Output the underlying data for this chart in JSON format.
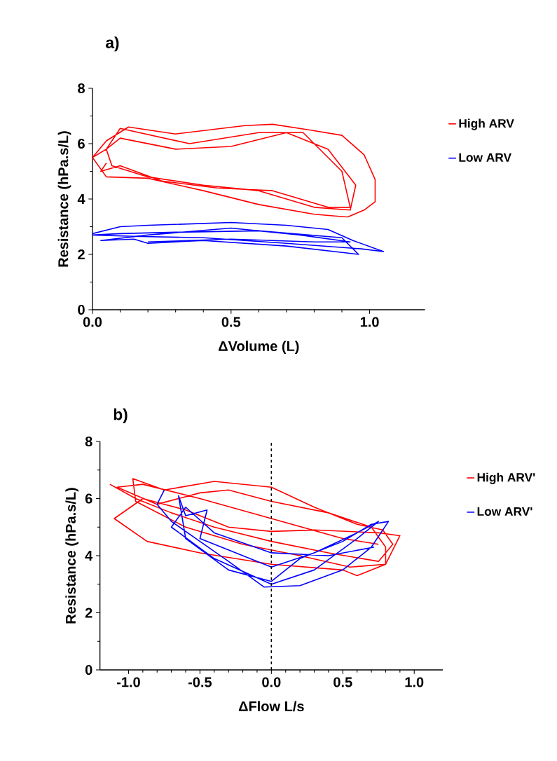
{
  "chart_data": [
    {
      "type": "line",
      "title": "a)",
      "xlabel": "ΔVolume (L)",
      "ylabel": "Resistance (hPa.s/L)",
      "xlim": [
        0,
        1.2
      ],
      "xticks": [
        {
          "value": 0,
          "label": "0.0"
        },
        {
          "value": 0.5,
          "label": "0.5"
        },
        {
          "value": 1.0,
          "label": "1.0"
        }
      ],
      "ylim": [
        0,
        8
      ],
      "yticks": [
        0,
        2,
        4,
        6,
        8
      ],
      "legend": "right",
      "series": [
        {
          "name": "High ARV",
          "color": "#ff0000",
          "x": [
            0.0,
            0.05,
            0.13,
            0.3,
            0.55,
            0.65,
            0.78,
            0.9,
            0.98,
            1.02,
            1.02,
            0.98,
            0.92,
            0.8,
            0.6,
            0.4,
            0.2,
            0.05,
            0.0,
            0.05,
            0.1,
            0.3,
            0.5,
            0.7,
            0.85,
            0.95,
            0.93,
            0.8,
            0.6,
            0.4,
            0.2,
            0.07,
            0.05,
            0.1,
            0.35,
            0.6,
            0.76,
            0.9,
            0.93,
            0.85,
            0.65,
            0.45,
            0.25,
            0.1,
            0.03,
            0.05
          ],
          "values": [
            5.5,
            6.1,
            6.6,
            6.35,
            6.65,
            6.7,
            6.5,
            6.3,
            5.6,
            4.7,
            3.9,
            3.6,
            3.35,
            3.45,
            3.8,
            4.3,
            4.75,
            4.8,
            5.5,
            5.8,
            6.2,
            5.8,
            5.9,
            6.4,
            5.8,
            4.5,
            3.6,
            3.7,
            4.3,
            4.5,
            4.8,
            5.2,
            5.8,
            6.55,
            6.0,
            6.4,
            6.4,
            5.0,
            3.7,
            3.7,
            4.3,
            4.4,
            4.65,
            5.2,
            5.0,
            5.3
          ]
        },
        {
          "name": "Low ARV",
          "color": "#0000ff",
          "x": [
            0.0,
            0.1,
            0.2,
            0.5,
            0.7,
            0.85,
            0.94,
            1.05,
            0.97,
            0.7,
            0.4,
            0.15,
            0.0,
            0.1,
            0.3,
            0.6,
            0.9,
            0.96,
            0.7,
            0.4,
            0.2,
            0.15,
            0.03,
            0.2,
            0.5,
            0.75,
            0.93,
            0.8,
            0.5,
            0.2
          ],
          "values": [
            2.75,
            3.0,
            3.05,
            3.15,
            3.05,
            2.9,
            2.5,
            2.1,
            2.2,
            2.4,
            2.6,
            2.65,
            2.7,
            2.75,
            2.8,
            2.85,
            2.6,
            2.0,
            2.3,
            2.5,
            2.4,
            2.55,
            2.5,
            2.7,
            2.95,
            2.7,
            2.45,
            2.45,
            2.55,
            2.45
          ]
        }
      ]
    },
    {
      "type": "line",
      "title": "b)",
      "xlabel": "ΔFlow L/s",
      "ylabel": "Resistance (hPa.s/L)",
      "xlim": [
        -1.2,
        1.2
      ],
      "xticks": [
        {
          "value": -1.0,
          "label": "-1.0"
        },
        {
          "value": -0.5,
          "label": "-0.5"
        },
        {
          "value": 0,
          "label": "0.0"
        },
        {
          "value": 0.5,
          "label": "0.5"
        },
        {
          "value": 1.0,
          "label": "1.0"
        }
      ],
      "ylim": [
        0,
        8
      ],
      "yticks": [
        0,
        2,
        4,
        6,
        8
      ],
      "legend": "right",
      "ref_lines": [
        {
          "axis": "x",
          "value": 0,
          "color": "#000000",
          "line_style": "dashed"
        }
      ],
      "series": [
        {
          "name": "High ARV'",
          "color": "#ff0000",
          "x": [
            -1.13,
            -0.95,
            -0.7,
            -0.4,
            0,
            0.4,
            0.75,
            0.85,
            0.78,
            0.6,
            0.3,
            0,
            -0.4,
            -0.75,
            -0.97,
            -0.95,
            -0.6,
            -0.2,
            0.2,
            0.55,
            0.8,
            0.9,
            0.75,
            0.3,
            0,
            -0.3,
            -0.6,
            -0.9,
            -1.1,
            -0.87,
            -0.5,
            0,
            0.5,
            0.6,
            0.8,
            0.8,
            0.7,
            0.4,
            0,
            -0.3,
            -0.5,
            -0.8,
            -1.08,
            -0.9,
            -0.5,
            0,
            0.5,
            0.75
          ],
          "values": [
            6.5,
            6.0,
            5.5,
            5.0,
            4.5,
            4.1,
            3.8,
            4.4,
            4.9,
            5.1,
            5.7,
            6.4,
            6.6,
            6.3,
            6.7,
            5.9,
            5.0,
            4.4,
            4.0,
            3.6,
            3.7,
            4.7,
            4.8,
            4.9,
            4.85,
            5.0,
            5.6,
            6.0,
            5.3,
            4.5,
            4.1,
            3.7,
            3.5,
            3.3,
            3.7,
            4.3,
            5.0,
            5.5,
            5.9,
            6.3,
            6.2,
            5.8,
            6.4,
            6.5,
            6.0,
            5.3,
            4.6,
            4.4
          ]
        },
        {
          "name": "Low ARV'",
          "color": "#0000ff",
          "x": [
            -0.75,
            -0.8,
            -0.7,
            -0.5,
            -0.3,
            -0.05,
            0.2,
            0.5,
            0.7,
            0.82,
            0.7,
            0.5,
            0.2,
            0,
            -0.3,
            -0.6,
            -0.65,
            -0.6,
            -0.45,
            -0.5,
            -0.2,
            0,
            0.3,
            0.6,
            0.75,
            0.6,
            0.3,
            0,
            -0.4,
            -0.7,
            -0.6,
            -0.4,
            0,
            0.4,
            0.72
          ],
          "values": [
            6.3,
            5.8,
            5.2,
            4.5,
            3.8,
            2.9,
            2.95,
            3.5,
            4.3,
            5.2,
            5.1,
            4.5,
            3.9,
            3.1,
            3.5,
            4.6,
            6.1,
            5.4,
            5.6,
            4.6,
            4.0,
            3.6,
            4.1,
            4.8,
            5.2,
            4.6,
            3.5,
            3.0,
            3.9,
            5.0,
            5.7,
            4.8,
            4.1,
            4.0,
            4.3
          ]
        }
      ]
    }
  ]
}
